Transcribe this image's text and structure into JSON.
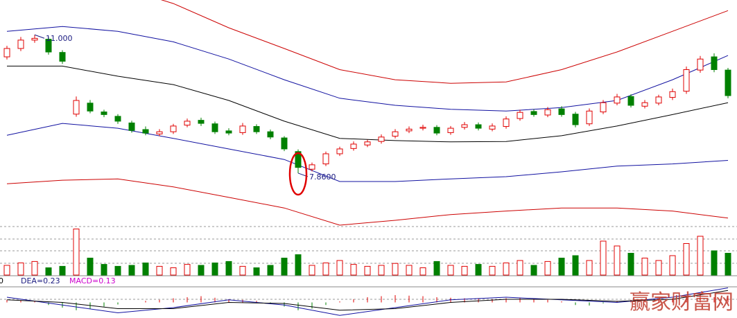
{
  "chart_data": {
    "type": "candlestick",
    "ylim": [
      6.68,
      11.79
    ],
    "up_color": "#e00000",
    "down_color": "#008000",
    "open": [
      10.5,
      10.69,
      10.88,
      10.9,
      10.6,
      9.2,
      9.45,
      9.25,
      9.15,
      9.0,
      8.85,
      8.75,
      8.8,
      8.95,
      9.06,
      8.98,
      8.82,
      8.78,
      8.92,
      8.8,
      8.66,
      8.35,
      7.95,
      8.07,
      8.3,
      8.42,
      8.5,
      8.58,
      8.7,
      8.82,
      8.88,
      8.9,
      8.78,
      8.9,
      8.96,
      8.86,
      8.92,
      9.1,
      9.26,
      9.18,
      9.32,
      9.2,
      8.98,
      9.25,
      9.45,
      9.6,
      9.38,
      9.45,
      9.58,
      9.72,
      10.2,
      10.5,
      10.2
    ],
    "high": [
      10.75,
      10.95,
      11.0,
      10.95,
      10.65,
      9.6,
      9.52,
      9.3,
      9.2,
      9.05,
      8.92,
      8.86,
      8.98,
      9.1,
      9.12,
      9.03,
      8.88,
      9.0,
      8.97,
      8.85,
      8.7,
      8.4,
      8.1,
      8.35,
      8.46,
      8.58,
      8.62,
      8.74,
      8.86,
      8.92,
      8.96,
      8.95,
      8.93,
      9.02,
      9.01,
      8.99,
      9.15,
      9.3,
      9.31,
      9.36,
      9.38,
      9.25,
      9.33,
      9.52,
      9.66,
      9.65,
      9.52,
      9.64,
      9.78,
      10.28,
      10.52,
      10.58,
      10.25
    ],
    "low": [
      10.44,
      10.63,
      10.82,
      10.55,
      10.34,
      9.14,
      9.22,
      9.13,
      8.98,
      8.78,
      8.72,
      8.7,
      8.75,
      8.9,
      8.93,
      8.75,
      8.72,
      8.73,
      8.75,
      8.63,
      8.36,
      7.86,
      7.9,
      8.02,
      8.25,
      8.37,
      8.45,
      8.53,
      8.65,
      8.77,
      8.83,
      8.72,
      8.73,
      8.85,
      8.83,
      8.81,
      8.87,
      9.05,
      9.14,
      9.13,
      9.14,
      8.9,
      8.93,
      9.2,
      9.4,
      9.35,
      9.33,
      9.4,
      9.52,
      9.66,
      10.14,
      10.15,
      9.56
    ],
    "close": [
      10.69,
      10.88,
      10.92,
      10.61,
      10.4,
      9.51,
      9.27,
      9.19,
      9.04,
      8.83,
      8.77,
      8.8,
      8.93,
      9.04,
      8.99,
      8.8,
      8.77,
      8.93,
      8.8,
      8.68,
      8.41,
      7.99,
      8.05,
      8.3,
      8.41,
      8.52,
      8.57,
      8.68,
      8.8,
      8.86,
      8.9,
      8.77,
      8.88,
      8.96,
      8.88,
      8.93,
      9.09,
      9.24,
      9.19,
      9.3,
      9.19,
      8.96,
      9.27,
      9.46,
      9.59,
      9.4,
      9.46,
      9.59,
      9.71,
      10.21,
      10.45,
      10.21,
      9.62
    ],
    "bands": [
      {
        "color": "#cc0000",
        "x": [
          0,
          4,
          8,
          12,
          16,
          20,
          24,
          28,
          32,
          36,
          40,
          44,
          48,
          52
        ],
        "values": [
          12.73,
          12.41,
          12.1,
          11.71,
          11.16,
          10.69,
          10.21,
          9.98,
          9.9,
          9.93,
          10.21,
          10.61,
          11.08,
          11.55
        ]
      },
      {
        "color": "#1010a0",
        "x": [
          0,
          4,
          8,
          12,
          16,
          20,
          24,
          28,
          32,
          36,
          40,
          44,
          48,
          52
        ],
        "values": [
          11.08,
          11.19,
          11.08,
          10.84,
          10.45,
          9.98,
          9.56,
          9.4,
          9.31,
          9.27,
          9.35,
          9.51,
          9.98,
          10.53
        ]
      },
      {
        "color": "#000000",
        "x": [
          0,
          4,
          8,
          12,
          16,
          20,
          24,
          28,
          32,
          36,
          40,
          44,
          48,
          52
        ],
        "values": [
          10.29,
          10.29,
          10.06,
          9.87,
          9.51,
          9.04,
          8.65,
          8.6,
          8.57,
          8.58,
          8.71,
          8.93,
          9.19,
          9.46
        ]
      },
      {
        "color": "#1010a0",
        "x": [
          0,
          4,
          8,
          12,
          16,
          20,
          24,
          28,
          32,
          36,
          40,
          44,
          48,
          52
        ],
        "values": [
          8.72,
          8.99,
          8.88,
          8.65,
          8.41,
          8.17,
          7.67,
          7.67,
          7.73,
          7.78,
          7.89,
          8.02,
          8.07,
          8.15
        ]
      },
      {
        "color": "#cc0000",
        "x": [
          0,
          4,
          8,
          12,
          16,
          20,
          24,
          28,
          32,
          36,
          40,
          44,
          48,
          52
        ],
        "values": [
          7.62,
          7.7,
          7.73,
          7.55,
          7.31,
          7.07,
          6.68,
          6.79,
          6.92,
          7.0,
          7.07,
          7.07,
          7.0,
          6.84
        ]
      }
    ],
    "annotations": [
      {
        "text": "11.000",
        "x": 2,
        "y": 11.0
      },
      {
        "text": "7.8600",
        "x": 21,
        "y": 7.86
      }
    ],
    "volume": {
      "ylim": [
        0,
        100
      ],
      "values": [
        20,
        25,
        28,
        15,
        18,
        95,
        35,
        22,
        18,
        20,
        25,
        18,
        15,
        22,
        20,
        25,
        28,
        18,
        15,
        20,
        35,
        42,
        20,
        25,
        30,
        22,
        18,
        20,
        24,
        20,
        15,
        28,
        20,
        18,
        22,
        18,
        25,
        30,
        20,
        28,
        35,
        40,
        30,
        70,
        60,
        45,
        35,
        30,
        40,
        65,
        80,
        50,
        45
      ]
    },
    "macd": {
      "ylim": [
        -0.3,
        0.3
      ],
      "values": [
        0.05,
        0.04,
        0.02,
        -0.05,
        -0.1,
        -0.15,
        -0.12,
        -0.08,
        -0.04,
        0,
        0.03,
        0.05,
        0.08,
        0.1,
        0.12,
        0.09,
        0.06,
        0.05,
        0.03,
        -0.02,
        -0.08,
        -0.15,
        -0.12,
        -0.05,
        0.02,
        0.06,
        0.1,
        0.12,
        0.14,
        0.13,
        0.12,
        0.1,
        0.09,
        0.08,
        0.07,
        0.06,
        0.08,
        0.09,
        0.07,
        0.05,
        0.02,
        -0.05,
        -0.06,
        -0.02,
        0.03,
        0.05,
        0.04,
        0.06,
        0.08,
        0.12,
        0.14,
        0.1,
        0.13
      ],
      "lines": [
        {
          "color": "#1010a0",
          "x": [
            0,
            4,
            8,
            12,
            16,
            20,
            24,
            28,
            32,
            36,
            40,
            44,
            48,
            52
          ],
          "values": [
            0.1,
            -0.05,
            -0.2,
            -0.1,
            0.05,
            -0.05,
            -0.25,
            -0.1,
            0.05,
            0.1,
            0.05,
            0.0,
            0.1,
            0.28
          ]
        },
        {
          "color": "#000000",
          "x": [
            0,
            4,
            8,
            12,
            16,
            20,
            24,
            28,
            32,
            36,
            40,
            44,
            48,
            52
          ],
          "values": [
            0.05,
            0,
            -0.12,
            -0.12,
            0,
            -0.02,
            -0.15,
            -0.12,
            0,
            0.06,
            0.06,
            0.02,
            0.06,
            0.23
          ]
        }
      ],
      "labels": [
        {
          "text": "0",
          "color": "#000000"
        },
        {
          "text": "DEA=0.23",
          "color": "#1a1a80"
        },
        {
          "text": "MACD=0.13",
          "color": "#cc00cc"
        }
      ]
    },
    "watermark": "赢家财富网"
  }
}
